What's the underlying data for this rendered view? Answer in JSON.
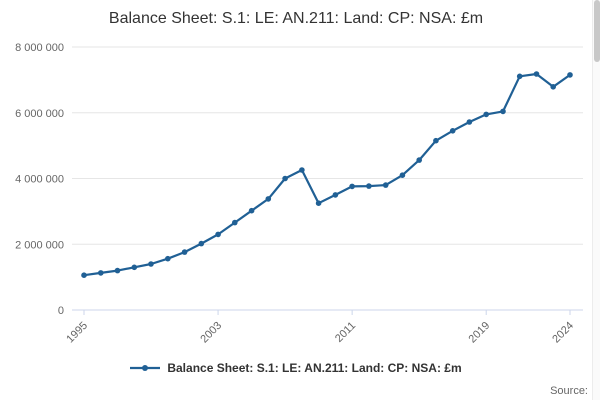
{
  "title": "Balance Sheet: S.1: LE: AN.211: Land: CP: NSA: £m",
  "legend": {
    "label": "Balance Sheet: S.1: LE: AN.211: Land: CP: NSA: £m"
  },
  "source": {
    "label": "Source:"
  },
  "style": {
    "background": "#ffffff",
    "accent_color": "#206095",
    "grid_color": "#e6e6e6",
    "axis_color": "#ccd6eb",
    "tick_label_color": "#666666",
    "title_color": "#333333",
    "legend_text_color": "#333333",
    "source_text_color": "#666666"
  },
  "chart_data": {
    "type": "line",
    "title": "Balance Sheet: S.1: LE: AN.211: Land: CP: NSA: £m",
    "xlabel": "",
    "ylabel": "",
    "x": [
      1995,
      1996,
      1997,
      1998,
      1999,
      2000,
      2001,
      2002,
      2003,
      2004,
      2005,
      2006,
      2007,
      2008,
      2009,
      2010,
      2011,
      2012,
      2013,
      2014,
      2015,
      2016,
      2017,
      2018,
      2019,
      2020,
      2021,
      2022,
      2023,
      2024
    ],
    "series": [
      {
        "name": "Balance Sheet: S.1: LE: AN.211: Land: CP: NSA: £m",
        "values": [
          1060000,
          1130000,
          1200000,
          1300000,
          1400000,
          1560000,
          1760000,
          2020000,
          2300000,
          2660000,
          3020000,
          3380000,
          4000000,
          4260000,
          3250000,
          3500000,
          3760000,
          3770000,
          3800000,
          4100000,
          4560000,
          5150000,
          5450000,
          5720000,
          5950000,
          6040000,
          7110000,
          7180000,
          6790000,
          7150000
        ]
      }
    ],
    "ylim": [
      0,
      8000000
    ],
    "xlim": [
      1995,
      2024
    ],
    "y_tick_values": [
      0,
      2000000,
      4000000,
      6000000,
      8000000
    ],
    "y_tick_labels": [
      "0",
      "2 000 000",
      "4 000 000",
      "6 000 000",
      "8 000 000"
    ],
    "x_tick_values": [
      1995,
      2003,
      2011,
      2019,
      2024
    ],
    "x_tick_labels": [
      "1995",
      "2003",
      "2011",
      "2019",
      "2024"
    ],
    "grid": "horizontal",
    "legend_position": "bottom",
    "markers": true
  }
}
